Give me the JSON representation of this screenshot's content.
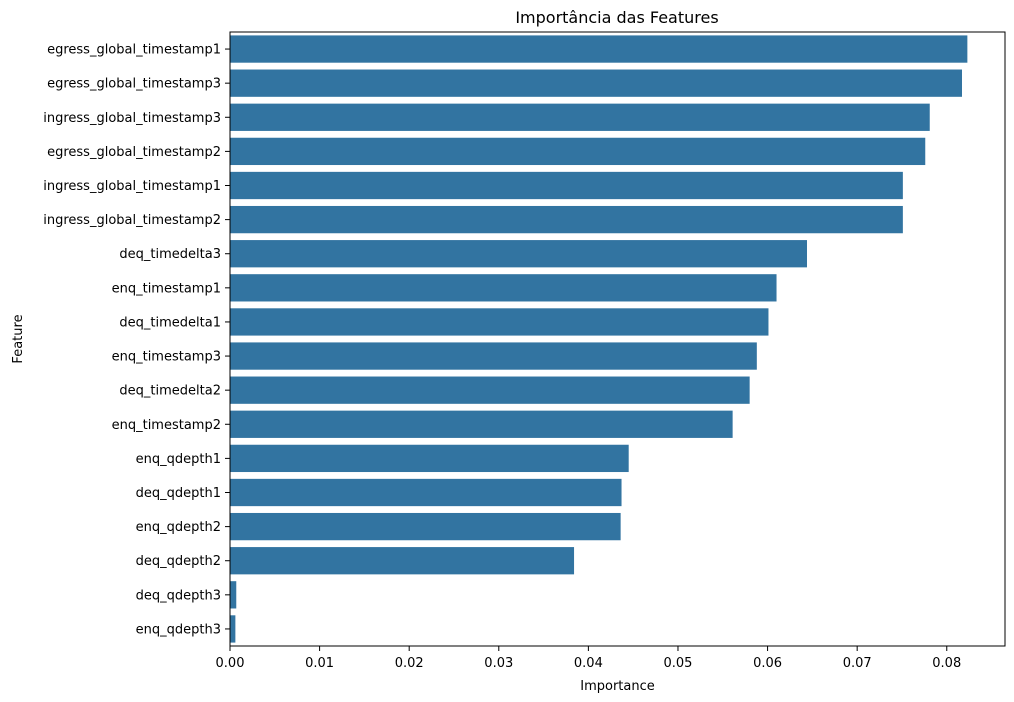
{
  "chart_data": {
    "type": "bar",
    "orientation": "horizontal",
    "title": "Importância das Features",
    "xlabel": "Importance",
    "ylabel": "Feature",
    "xlim": [
      0,
      0.0865
    ],
    "xticks": [
      0.0,
      0.01,
      0.02,
      0.03,
      0.04,
      0.05,
      0.06,
      0.07,
      0.08
    ],
    "xtick_labels": [
      "0.00",
      "0.01",
      "0.02",
      "0.03",
      "0.04",
      "0.05",
      "0.06",
      "0.07",
      "0.08"
    ],
    "grid": false,
    "bar_color": "#3274a1",
    "categories": [
      "egress_global_timestamp1",
      "egress_global_timestamp3",
      "ingress_global_timestamp3",
      "egress_global_timestamp2",
      "ingress_global_timestamp1",
      "ingress_global_timestamp2",
      "deq_timedelta3",
      "enq_timestamp1",
      "deq_timedelta1",
      "enq_timestamp3",
      "deq_timedelta2",
      "enq_timestamp2",
      "enq_qdepth1",
      "deq_qdepth1",
      "enq_qdepth2",
      "deq_qdepth2",
      "deq_qdepth3",
      "enq_qdepth3"
    ],
    "values": [
      0.0823,
      0.0817,
      0.0781,
      0.0776,
      0.0751,
      0.0751,
      0.0644,
      0.061,
      0.0601,
      0.0588,
      0.058,
      0.0561,
      0.0445,
      0.0437,
      0.0436,
      0.0384,
      0.0007,
      0.0006
    ]
  }
}
